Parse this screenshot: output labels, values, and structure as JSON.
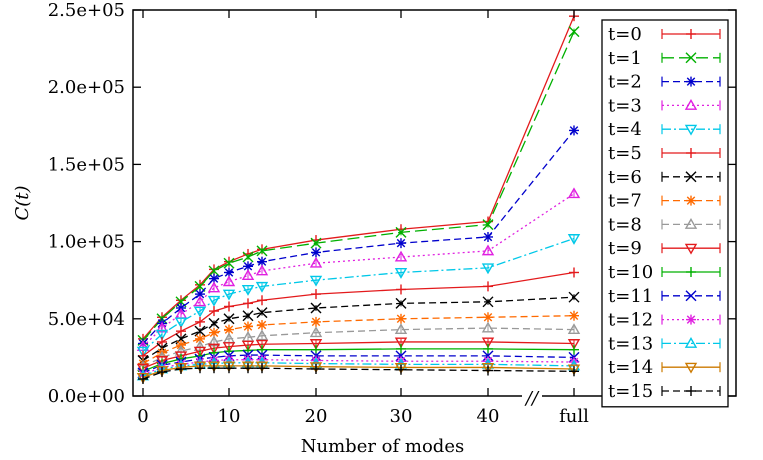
{
  "chart_data": {
    "type": "line",
    "xlabel": "Number of modes",
    "ylabel": "C(t)",
    "ylim": [
      0,
      250000
    ],
    "yticks": [
      {
        "value": 0,
        "label": "0.0e+00"
      },
      {
        "value": 50000,
        "label": "5.0e+04"
      },
      {
        "value": 100000,
        "label": "1.0e+05"
      },
      {
        "value": 150000,
        "label": "1.5e+05"
      },
      {
        "value": 200000,
        "label": "2.0e+05"
      },
      {
        "value": 250000,
        "label": "2.5e+05"
      }
    ],
    "xticks": [
      "0",
      "10",
      "20",
      "30",
      "40",
      "full"
    ],
    "x_categories": [
      "0",
      "2",
      "4",
      "6",
      "8",
      "10",
      "12",
      "14",
      "20",
      "30",
      "40",
      "full"
    ],
    "axis_break_mark": "//",
    "legend_position": "right",
    "grid": false,
    "series": [
      {
        "name": "t=0",
        "color": "#e31a1c",
        "dash": "solid",
        "marker": "plus",
        "values": [
          37000,
          51000,
          62000,
          72000,
          82000,
          87000,
          92000,
          95000,
          101000,
          108000,
          113000,
          246000
        ]
      },
      {
        "name": "t=1",
        "color": "#00b000",
        "dash": "longdash",
        "marker": "cross",
        "values": [
          36000,
          50000,
          61000,
          71000,
          81000,
          86000,
          90000,
          94000,
          99000,
          106000,
          111000,
          236000
        ]
      },
      {
        "name": "t=2",
        "color": "#0000cc",
        "dash": "dash",
        "marker": "star",
        "values": [
          34000,
          47000,
          57000,
          66000,
          76000,
          80000,
          84000,
          87000,
          93000,
          99000,
          103000,
          172000
        ]
      },
      {
        "name": "t=3",
        "color": "#e020e0",
        "dash": "dot",
        "marker": "triangle",
        "values": [
          32000,
          44000,
          53000,
          61000,
          70000,
          74000,
          78000,
          81000,
          86000,
          90000,
          94000,
          131000
        ]
      },
      {
        "name": "t=4",
        "color": "#00c8e8",
        "dash": "dashdot",
        "marker": "triangle-down",
        "values": [
          29000,
          40000,
          48000,
          55000,
          62000,
          66000,
          69000,
          71000,
          75000,
          80000,
          83000,
          102000
        ]
      },
      {
        "name": "t=5",
        "color": "#e31a1c",
        "dash": "solid",
        "marker": "plus",
        "values": [
          26000,
          35000,
          42000,
          48000,
          55000,
          58000,
          60000,
          62000,
          66000,
          69000,
          71000,
          80000
        ]
      },
      {
        "name": "t=6",
        "color": "#000000",
        "dash": "dash",
        "marker": "cross",
        "values": [
          23000,
          31000,
          37000,
          42000,
          47000,
          50000,
          52000,
          54000,
          57000,
          60000,
          61000,
          64000
        ]
      },
      {
        "name": "t=7",
        "color": "#ff6a00",
        "dash": "dash",
        "marker": "star",
        "values": [
          21000,
          28000,
          33000,
          37000,
          41000,
          43000,
          45000,
          46000,
          48000,
          50000,
          51000,
          52000
        ]
      },
      {
        "name": "t=8",
        "color": "#999999",
        "dash": "dash",
        "marker": "triangle",
        "values": [
          19000,
          25000,
          29000,
          32000,
          35000,
          37000,
          38000,
          39000,
          41000,
          43000,
          44000,
          43000
        ]
      },
      {
        "name": "t=9",
        "color": "#e31a1c",
        "dash": "solid",
        "marker": "triangle-down",
        "values": [
          18000,
          23000,
          26000,
          29000,
          31000,
          32000,
          33000,
          33500,
          34000,
          35000,
          35000,
          34000
        ]
      },
      {
        "name": "t=10",
        "color": "#00b000",
        "dash": "solid",
        "marker": "plus",
        "values": [
          16000,
          21000,
          24000,
          26000,
          28000,
          29000,
          29500,
          30000,
          30000,
          30500,
          30500,
          30000
        ]
      },
      {
        "name": "t=11",
        "color": "#0000cc",
        "dash": "dash",
        "marker": "cross",
        "values": [
          15000,
          20000,
          22000,
          24000,
          25000,
          26000,
          26500,
          26500,
          26000,
          26000,
          26000,
          25000
        ]
      },
      {
        "name": "t=12",
        "color": "#e020e0",
        "dash": "dot",
        "marker": "star",
        "values": [
          14000,
          18500,
          20500,
          22000,
          23000,
          23500,
          23500,
          23500,
          23000,
          22500,
          22500,
          22000
        ]
      },
      {
        "name": "t=13",
        "color": "#00c8e8",
        "dash": "dashdot",
        "marker": "triangle",
        "values": [
          13000,
          17500,
          19500,
          20500,
          21000,
          21500,
          21500,
          21500,
          21000,
          20500,
          20500,
          19500
        ]
      },
      {
        "name": "t=14",
        "color": "#cc7a00",
        "dash": "solid",
        "marker": "triangle-down",
        "values": [
          12000,
          16500,
          18500,
          19500,
          19500,
          19500,
          19500,
          19500,
          19000,
          18500,
          18500,
          17500
        ]
      },
      {
        "name": "t=15",
        "color": "#000000",
        "dash": "dash",
        "marker": "plus",
        "values": [
          11000,
          15500,
          17500,
          18000,
          18000,
          18000,
          18000,
          18000,
          17500,
          17000,
          16500,
          16000
        ]
      }
    ]
  }
}
